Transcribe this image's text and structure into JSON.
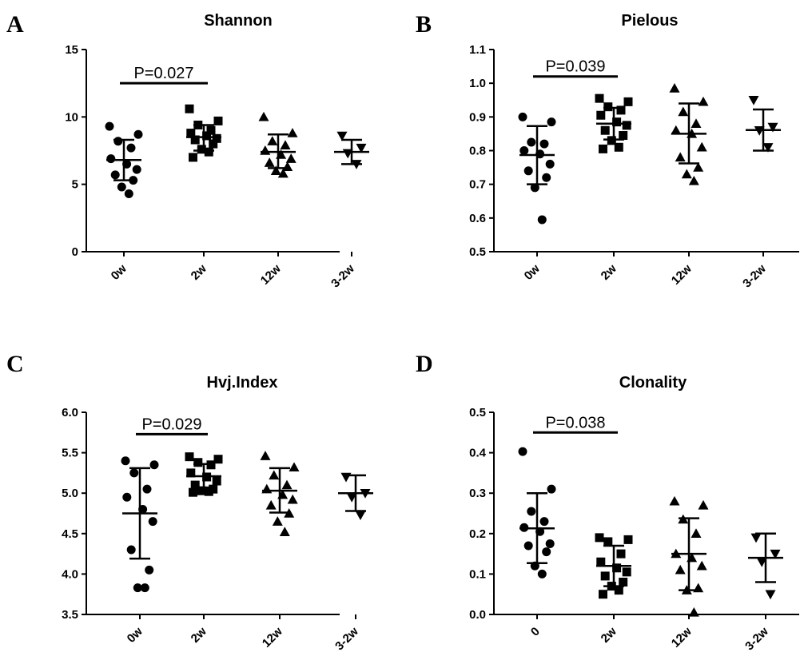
{
  "chart_data": [
    {
      "type": "scatter",
      "panel": "A",
      "title": "Shannon",
      "categories": [
        "0w",
        "2w",
        "12w",
        "3-2w"
      ],
      "ylim": [
        0,
        15
      ],
      "yticks": [
        0,
        5,
        10,
        15
      ],
      "ytick_labels": [
        "0",
        "5",
        "10",
        "15"
      ],
      "annotation": "P=0.027",
      "annotation_span": [
        "0w",
        "2w"
      ],
      "annotation_y": 12.5,
      "series": [
        {
          "name": "0w",
          "marker": "circle",
          "mean": 6.8,
          "sd_low": 5.3,
          "sd_high": 8.3,
          "points": [
            9.3,
            8.7,
            8.2,
            7.7,
            6.9,
            6.5,
            6.1,
            5.7,
            5.3,
            4.8,
            4.3
          ]
        },
        {
          "name": "2w",
          "marker": "square",
          "mean": 8.5,
          "sd_low": 7.5,
          "sd_high": 9.4,
          "points": [
            10.6,
            9.7,
            9.4,
            9.0,
            8.8,
            8.6,
            8.4,
            8.3,
            8.0,
            7.6,
            7.4,
            7.0
          ]
        },
        {
          "name": "12w",
          "marker": "triangle-up",
          "mean": 7.4,
          "sd_low": 6.2,
          "sd_high": 8.7,
          "points": [
            10.0,
            8.8,
            8.2,
            7.9,
            7.5,
            7.2,
            6.9,
            6.6,
            6.3,
            6.0,
            5.8
          ]
        },
        {
          "name": "3-2w",
          "marker": "triangle-down",
          "mean": 7.4,
          "sd_low": 6.5,
          "sd_high": 8.3,
          "points": [
            8.6,
            7.7,
            7.3,
            6.5
          ]
        }
      ]
    },
    {
      "type": "scatter",
      "panel": "B",
      "title": "Pielous",
      "categories": [
        "0w",
        "2w",
        "12w",
        "3-2w"
      ],
      "ylim": [
        0.5,
        1.1
      ],
      "yticks": [
        0.5,
        0.6,
        0.7,
        0.8,
        0.9,
        1.0,
        1.1
      ],
      "ytick_labels": [
        "0.5",
        "0.6",
        "0.7",
        "0.8",
        "0.9",
        "1.0",
        "1.1"
      ],
      "annotation": "P=0.039",
      "annotation_span": [
        "0w",
        "2w"
      ],
      "annotation_y": 1.02,
      "series": [
        {
          "name": "0w",
          "marker": "circle",
          "mean": 0.787,
          "sd_low": 0.7,
          "sd_high": 0.873,
          "points": [
            0.9,
            0.885,
            0.825,
            0.82,
            0.8,
            0.79,
            0.76,
            0.74,
            0.72,
            0.69,
            0.595
          ]
        },
        {
          "name": "2w",
          "marker": "square",
          "mean": 0.88,
          "sd_low": 0.833,
          "sd_high": 0.927,
          "points": [
            0.955,
            0.945,
            0.93,
            0.92,
            0.905,
            0.885,
            0.875,
            0.86,
            0.845,
            0.83,
            0.81,
            0.805
          ]
        },
        {
          "name": "12w",
          "marker": "triangle-up",
          "mean": 0.85,
          "sd_low": 0.762,
          "sd_high": 0.94,
          "points": [
            0.985,
            0.945,
            0.915,
            0.88,
            0.86,
            0.85,
            0.81,
            0.78,
            0.75,
            0.73,
            0.71
          ]
        },
        {
          "name": "3-2w",
          "marker": "triangle-down",
          "mean": 0.861,
          "sd_low": 0.8,
          "sd_high": 0.922,
          "points": [
            0.95,
            0.87,
            0.86,
            0.81
          ]
        }
      ]
    },
    {
      "type": "scatter",
      "panel": "C",
      "title": "Hvj.Index",
      "categories": [
        "0w",
        "2w",
        "12w",
        "3-2w"
      ],
      "ylim": [
        3.5,
        6.0
      ],
      "yticks": [
        3.5,
        4.0,
        4.5,
        5.0,
        5.5,
        6.0
      ],
      "ytick_labels": [
        "3.5",
        "4.0",
        "4.5",
        "5.0",
        "5.5",
        "6.0"
      ],
      "annotation": "P=0.029",
      "annotation_span": [
        "0w",
        "2w"
      ],
      "annotation_y": 5.73,
      "series": [
        {
          "name": "0w",
          "marker": "circle",
          "mean": 4.75,
          "sd_low": 4.19,
          "sd_high": 5.31,
          "points": [
            5.4,
            5.35,
            5.25,
            5.05,
            4.95,
            4.8,
            4.65,
            4.3,
            4.05,
            3.83,
            3.83
          ]
        },
        {
          "name": "2w",
          "marker": "square",
          "mean": 5.21,
          "sd_low": 5.07,
          "sd_high": 5.36,
          "points": [
            5.45,
            5.42,
            5.38,
            5.35,
            5.25,
            5.2,
            5.15,
            5.1,
            5.05,
            5.03,
            5.02,
            5.01
          ]
        },
        {
          "name": "12w",
          "marker": "triangle-up",
          "mean": 5.03,
          "sd_low": 4.76,
          "sd_high": 5.31,
          "points": [
            5.46,
            5.32,
            5.22,
            5.1,
            5.05,
            4.98,
            4.92,
            4.85,
            4.75,
            4.65,
            4.52
          ]
        },
        {
          "name": "3-2w",
          "marker": "triangle-down",
          "mean": 5.0,
          "sd_low": 4.78,
          "sd_high": 5.22,
          "points": [
            5.2,
            5.0,
            4.95,
            4.73
          ]
        }
      ]
    },
    {
      "type": "scatter",
      "panel": "D",
      "title": "Clonality",
      "categories": [
        "0",
        "2w",
        "12w",
        "3-2w"
      ],
      "ylim": [
        0.0,
        0.5
      ],
      "yticks": [
        0.0,
        0.1,
        0.2,
        0.3,
        0.4,
        0.5
      ],
      "ytick_labels": [
        "0.0",
        "0.1",
        "0.2",
        "0.3",
        "0.4",
        "0.5"
      ],
      "annotation": "P=0.038",
      "annotation_span": [
        "0",
        "2w"
      ],
      "annotation_y": 0.45,
      "series": [
        {
          "name": "0",
          "marker": "circle",
          "mean": 0.213,
          "sd_low": 0.127,
          "sd_high": 0.3,
          "points": [
            0.403,
            0.31,
            0.255,
            0.23,
            0.215,
            0.205,
            0.175,
            0.17,
            0.155,
            0.12,
            0.1
          ]
        },
        {
          "name": "2w",
          "marker": "square",
          "mean": 0.12,
          "sd_low": 0.07,
          "sd_high": 0.17,
          "points": [
            0.19,
            0.185,
            0.18,
            0.15,
            0.13,
            0.115,
            0.105,
            0.095,
            0.08,
            0.07,
            0.06,
            0.05
          ]
        },
        {
          "name": "12w",
          "marker": "triangle-up",
          "mean": 0.15,
          "sd_low": 0.06,
          "sd_high": 0.238,
          "points": [
            0.28,
            0.27,
            0.235,
            0.2,
            0.15,
            0.14,
            0.12,
            0.11,
            0.065,
            0.06,
            0.005
          ]
        },
        {
          "name": "3-2w",
          "marker": "triangle-down",
          "mean": 0.14,
          "sd_low": 0.08,
          "sd_high": 0.2,
          "points": [
            0.19,
            0.15,
            0.13,
            0.05
          ]
        }
      ]
    }
  ]
}
